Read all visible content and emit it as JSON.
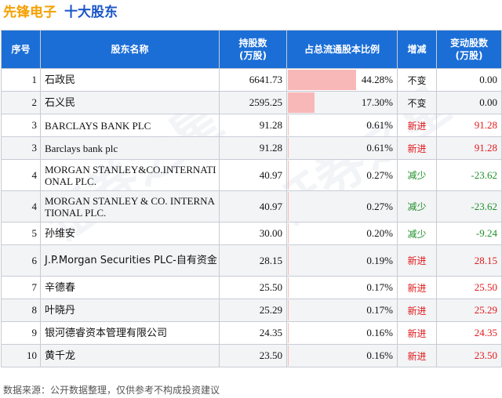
{
  "header": {
    "company": "先锋电子",
    "title": "十大股东"
  },
  "table": {
    "columns": [
      "序号",
      "股东名称",
      "持股数\n(万股)",
      "占总流通股本比例",
      "增减",
      "变动股数\n(万股)"
    ],
    "rows": [
      {
        "rank": "1",
        "name": "石政民",
        "shares": "6641.73",
        "pct": "44.28%",
        "pct_value": 44.28,
        "change": "不变",
        "change_type": "same",
        "delta": "0.00"
      },
      {
        "rank": "2",
        "name": "石义民",
        "shares": "2595.25",
        "pct": "17.30%",
        "pct_value": 17.3,
        "change": "不变",
        "change_type": "same",
        "delta": "0.00"
      },
      {
        "rank": "3",
        "name": "BARCLAYS BANK PLC",
        "shares": "91.28",
        "pct": "0.61%",
        "pct_value": 0.61,
        "change": "新进",
        "change_type": "new",
        "delta": "91.28"
      },
      {
        "rank": "3",
        "name": "Barclays bank plc",
        "shares": "91.28",
        "pct": "0.61%",
        "pct_value": 0.61,
        "change": "新进",
        "change_type": "new",
        "delta": "91.28"
      },
      {
        "rank": "4",
        "name": "MORGAN STANLEY&CO.INTERNATIONAL PLC.",
        "shares": "40.97",
        "pct": "0.27%",
        "pct_value": 0.27,
        "change": "减少",
        "change_type": "down",
        "delta": "-23.62"
      },
      {
        "rank": "4",
        "name": "MORGAN STANLEY & CO. INTERNATIONAL PLC.",
        "shares": "40.97",
        "pct": "0.27%",
        "pct_value": 0.27,
        "change": "减少",
        "change_type": "down",
        "delta": "-23.62"
      },
      {
        "rank": "5",
        "name": "孙维安",
        "shares": "30.00",
        "pct": "0.20%",
        "pct_value": 0.2,
        "change": "减少",
        "change_type": "down",
        "delta": "-9.24"
      },
      {
        "rank": "6",
        "name": "J.P.Morgan Securities PLC-自有资金",
        "shares": "28.15",
        "pct": "0.19%",
        "pct_value": 0.19,
        "change": "新进",
        "change_type": "new",
        "delta": "28.15"
      },
      {
        "rank": "7",
        "name": "辛德春",
        "shares": "25.50",
        "pct": "0.17%",
        "pct_value": 0.17,
        "change": "新进",
        "change_type": "new",
        "delta": "25.50"
      },
      {
        "rank": "8",
        "name": "叶晓丹",
        "shares": "25.29",
        "pct": "0.17%",
        "pct_value": 0.17,
        "change": "新进",
        "change_type": "new",
        "delta": "25.29"
      },
      {
        "rank": "9",
        "name": "银河德睿资本管理有限公司",
        "shares": "24.35",
        "pct": "0.16%",
        "pct_value": 0.16,
        "change": "新进",
        "change_type": "new",
        "delta": "24.35"
      },
      {
        "rank": "10",
        "name": "黄千龙",
        "shares": "23.50",
        "pct": "0.16%",
        "pct_value": 0.16,
        "change": "新进",
        "change_type": "new",
        "delta": "23.50"
      }
    ]
  },
  "footer": {
    "source": "数据来源：公开数据整理，仅供参考不构成投资建议"
  },
  "watermark": "证券之星",
  "colors": {
    "header_bg": "#1b6ed6",
    "company": "#f5a000",
    "title": "#1a56c7",
    "increase": "#e0191b",
    "decrease": "#1f8f2a",
    "bar": "#f9b8b8"
  }
}
